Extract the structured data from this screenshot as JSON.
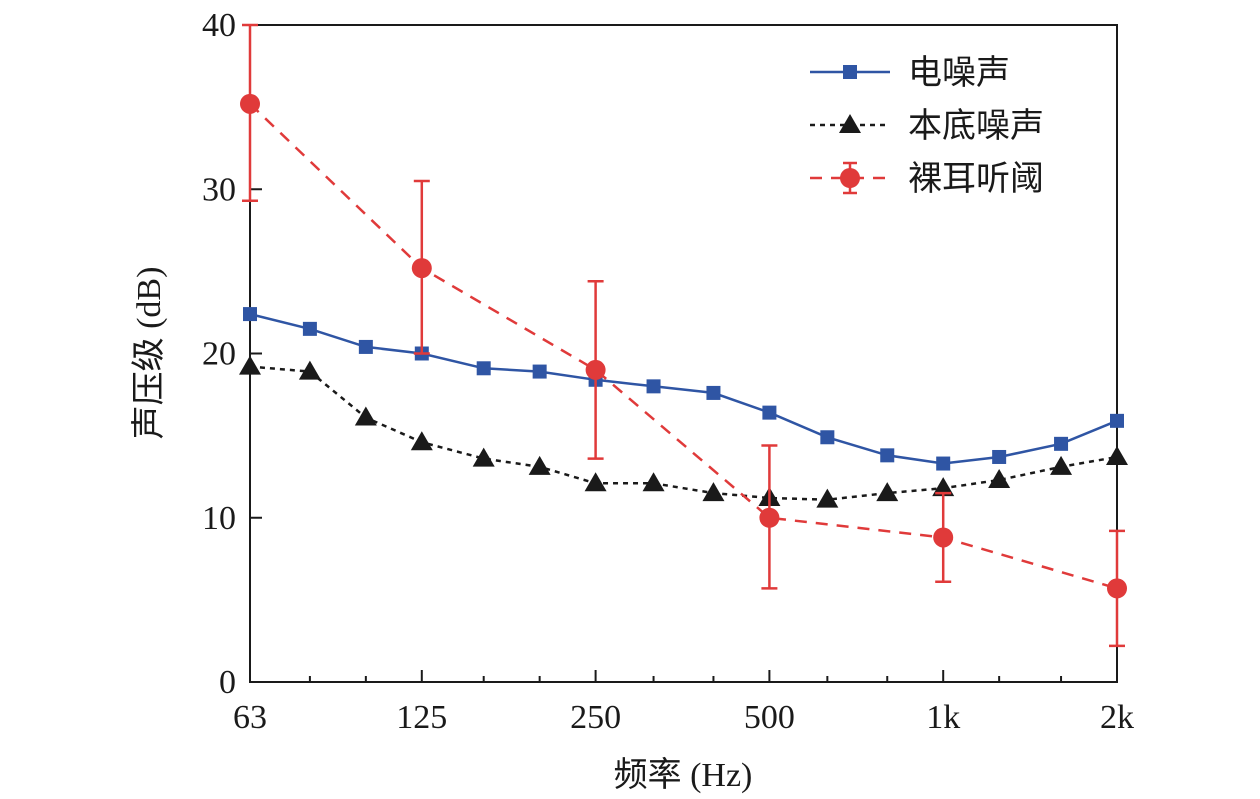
{
  "chart_data": {
    "type": "line",
    "xlabel": "频率 (Hz)",
    "ylabel": "声压级 (dB)",
    "x_scale": "log",
    "xlim": [
      63,
      2000
    ],
    "ylim": [
      0,
      40
    ],
    "x_ticks": [
      {
        "value": 63,
        "label": "63"
      },
      {
        "value": 125,
        "label": "125"
      },
      {
        "value": 250,
        "label": "250"
      },
      {
        "value": 500,
        "label": "500"
      },
      {
        "value": 1000,
        "label": "1k"
      },
      {
        "value": 2000,
        "label": "2k"
      }
    ],
    "x_minor_ticks": [
      80,
      100,
      160,
      200,
      315,
      400,
      630,
      800,
      1250,
      1600
    ],
    "y_ticks": [
      0,
      10,
      20,
      30,
      40
    ],
    "grid": false,
    "legend_position": "top-right",
    "series": [
      {
        "name": "电噪声",
        "color": "#2f55a4",
        "line_style": "solid",
        "marker": "square",
        "x": [
          63,
          80,
          100,
          125,
          160,
          200,
          250,
          315,
          400,
          500,
          630,
          800,
          1000,
          1250,
          1600,
          2000
        ],
        "y": [
          22.4,
          21.5,
          20.4,
          20.0,
          19.1,
          18.9,
          18.4,
          18.0,
          17.6,
          16.4,
          14.9,
          13.8,
          13.3,
          13.7,
          14.5,
          15.9
        ]
      },
      {
        "name": "本底噪声",
        "color": "#1a1a1a",
        "line_style": "dotted",
        "marker": "triangle",
        "x": [
          63,
          80,
          100,
          125,
          160,
          200,
          250,
          315,
          400,
          500,
          630,
          800,
          1000,
          1250,
          1600,
          2000
        ],
        "y": [
          19.2,
          18.9,
          16.1,
          14.6,
          13.6,
          13.1,
          12.1,
          12.1,
          11.5,
          11.2,
          11.1,
          11.5,
          11.8,
          12.3,
          13.1,
          13.7
        ]
      },
      {
        "name": "裸耳听阈",
        "color": "#e03a3a",
        "line_style": "dashed",
        "marker": "circle",
        "x": [
          63,
          125,
          250,
          500,
          1000,
          2000
        ],
        "y": [
          35.2,
          25.2,
          19.0,
          10.0,
          8.8,
          5.7
        ],
        "error_low": [
          29.3,
          20.0,
          13.6,
          5.7,
          6.1,
          2.2
        ],
        "error_high": [
          40.0,
          30.5,
          24.4,
          14.4,
          11.5,
          9.2
        ]
      }
    ]
  }
}
